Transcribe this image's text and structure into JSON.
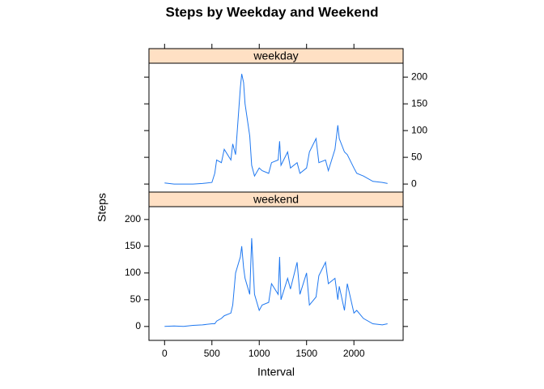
{
  "title": "Steps by Weekday and Weekend",
  "x_label": "Interval",
  "y_label": "Steps",
  "chart_data": [
    {
      "type": "line",
      "strip": "weekday",
      "color": "#1f78f0",
      "x": [
        0,
        100,
        200,
        300,
        400,
        500,
        530,
        550,
        600,
        630,
        700,
        720,
        750,
        800,
        815,
        835,
        850,
        900,
        920,
        950,
        1000,
        1030,
        1100,
        1130,
        1200,
        1215,
        1230,
        1300,
        1330,
        1400,
        1430,
        1500,
        1530,
        1600,
        1630,
        1700,
        1730,
        1800,
        1830,
        1845,
        1900,
        1930,
        2000,
        2030,
        2100,
        2200,
        2300,
        2355
      ],
      "values": [
        2,
        0,
        0,
        0,
        1,
        3,
        20,
        45,
        40,
        65,
        45,
        75,
        55,
        180,
        206,
        190,
        150,
        90,
        35,
        15,
        30,
        25,
        20,
        40,
        45,
        80,
        35,
        60,
        30,
        40,
        20,
        30,
        60,
        85,
        40,
        45,
        25,
        65,
        110,
        85,
        60,
        55,
        30,
        20,
        15,
        5,
        3,
        1
      ],
      "xlim": [
        -165,
        2520
      ],
      "xticks": [
        0,
        500,
        1000,
        1500,
        2000
      ],
      "ylim": [
        -15,
        226
      ],
      "yticks": [
        0,
        50,
        100,
        150,
        200
      ]
    },
    {
      "type": "line",
      "strip": "weekend",
      "color": "#1f78f0",
      "x": [
        0,
        100,
        200,
        300,
        400,
        500,
        530,
        550,
        600,
        630,
        700,
        720,
        750,
        800,
        815,
        835,
        850,
        900,
        920,
        950,
        1000,
        1030,
        1100,
        1130,
        1200,
        1215,
        1230,
        1300,
        1330,
        1400,
        1430,
        1500,
        1530,
        1600,
        1630,
        1700,
        1730,
        1800,
        1830,
        1845,
        1900,
        1930,
        2000,
        2030,
        2100,
        2200,
        2300,
        2355
      ],
      "values": [
        0,
        1,
        0,
        2,
        3,
        5,
        5,
        10,
        15,
        20,
        25,
        40,
        100,
        130,
        150,
        110,
        90,
        60,
        165,
        60,
        30,
        40,
        45,
        80,
        60,
        130,
        50,
        90,
        70,
        120,
        60,
        100,
        40,
        55,
        95,
        120,
        80,
        90,
        50,
        75,
        30,
        80,
        25,
        30,
        15,
        5,
        3,
        5
      ],
      "xlim": [
        -165,
        2520
      ],
      "xticks": [
        0,
        500,
        1000,
        1500,
        2000
      ],
      "ylim": [
        -26,
        224
      ],
      "yticks": [
        0,
        50,
        100,
        150,
        200
      ]
    }
  ]
}
